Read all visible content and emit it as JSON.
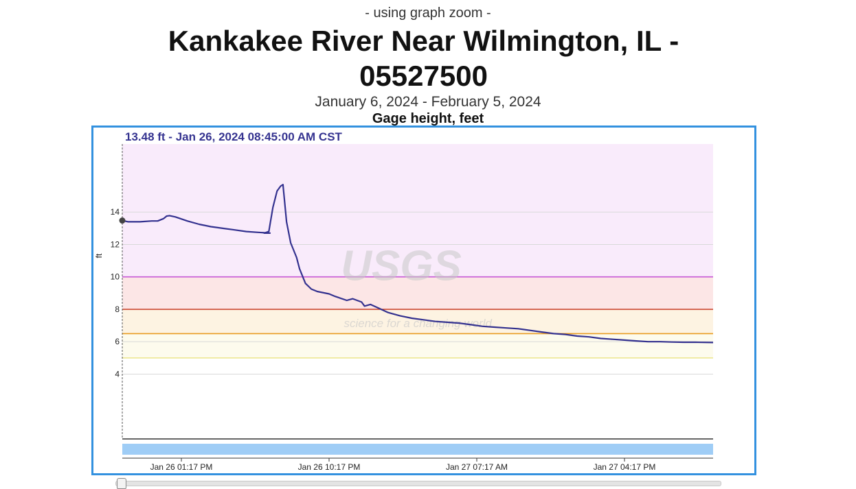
{
  "header": {
    "zoom_note": "- using graph zoom -",
    "title": "Kankakee River Near Wilmington, IL - 05527500",
    "date_range": "January 6, 2024 - February 5, 2024",
    "parameter": "Gage height, feet"
  },
  "readout": "13.48 ft - Jan 26, 2024 08:45:00 AM CST",
  "watermark": {
    "name": "USGS",
    "tagline": "science for a changing world"
  },
  "colors": {
    "line": "#33318f",
    "band_purple": "#f9ebfb",
    "band_red": "#fce6e6",
    "band_orange": "#fdf3e2",
    "band_yellow": "#fdfbed",
    "thr_purple": "#c657d6",
    "thr_red": "#c83a22",
    "thr_orange": "#e89b1f",
    "thr_yellow": "#ece58a",
    "navigator": "#9fcdf6",
    "frame": "#3391df"
  },
  "chart_data": {
    "type": "line",
    "title": "Kankakee River Near Wilmington, IL - 05527500",
    "ylabel": "ft",
    "xlabel": "",
    "ylim": [
      0,
      18.2
    ],
    "y_ticks": [
      4,
      6,
      8,
      10,
      12,
      14
    ],
    "x_ticks": [
      {
        "x": 0.1,
        "label": "Jan 26 01:17 PM"
      },
      {
        "x": 0.35,
        "label": "Jan 26 10:17 PM"
      },
      {
        "x": 0.6,
        "label": "Jan 27 07:17 AM"
      },
      {
        "x": 0.85,
        "label": "Jan 27 04:17 PM"
      }
    ],
    "thresholds": [
      {
        "value": 10,
        "band_top": 18.2,
        "color": "purple"
      },
      {
        "value": 8,
        "band_top": 10,
        "color": "red"
      },
      {
        "value": 6.5,
        "band_top": 8,
        "color": "orange"
      },
      {
        "value": 5,
        "band_top": 6.5,
        "color": "yellow"
      }
    ],
    "highlighted_point": {
      "x": 0.0,
      "y": 13.48
    },
    "series": [
      {
        "x": [
          0.0,
          0.01,
          0.03,
          0.05,
          0.06,
          0.07,
          0.075,
          0.08,
          0.09,
          0.11,
          0.13,
          0.15,
          0.17,
          0.19,
          0.21,
          0.23,
          0.25,
          0.24,
          0.248,
          0.255,
          0.262,
          0.268,
          0.272,
          0.278,
          0.285,
          0.295,
          0.3,
          0.31,
          0.32,
          0.33,
          0.35,
          0.36,
          0.38,
          0.39,
          0.405,
          0.41,
          0.42,
          0.435,
          0.45,
          0.47,
          0.49,
          0.51,
          0.53,
          0.55,
          0.57,
          0.59,
          0.61,
          0.63,
          0.65,
          0.67,
          0.69,
          0.71,
          0.73,
          0.75,
          0.77,
          0.79,
          0.81,
          0.83,
          0.85,
          0.87,
          0.89,
          0.91,
          0.93,
          0.95,
          0.97,
          1.0
        ],
        "y": [
          13.48,
          13.4,
          13.4,
          13.45,
          13.45,
          13.6,
          13.75,
          13.78,
          13.7,
          13.45,
          13.25,
          13.1,
          13.0,
          12.9,
          12.8,
          12.75,
          12.7,
          12.7,
          12.8,
          14.3,
          15.3,
          15.6,
          15.7,
          13.4,
          12.1,
          11.2,
          10.5,
          9.6,
          9.25,
          9.1,
          8.95,
          8.8,
          8.55,
          8.65,
          8.45,
          8.2,
          8.3,
          8.05,
          7.8,
          7.6,
          7.45,
          7.35,
          7.25,
          7.2,
          7.15,
          7.05,
          6.95,
          6.9,
          6.85,
          6.8,
          6.7,
          6.6,
          6.5,
          6.45,
          6.35,
          6.3,
          6.2,
          6.15,
          6.1,
          6.05,
          6.0,
          6.0,
          5.98,
          5.97,
          5.97,
          5.95
        ]
      }
    ]
  }
}
